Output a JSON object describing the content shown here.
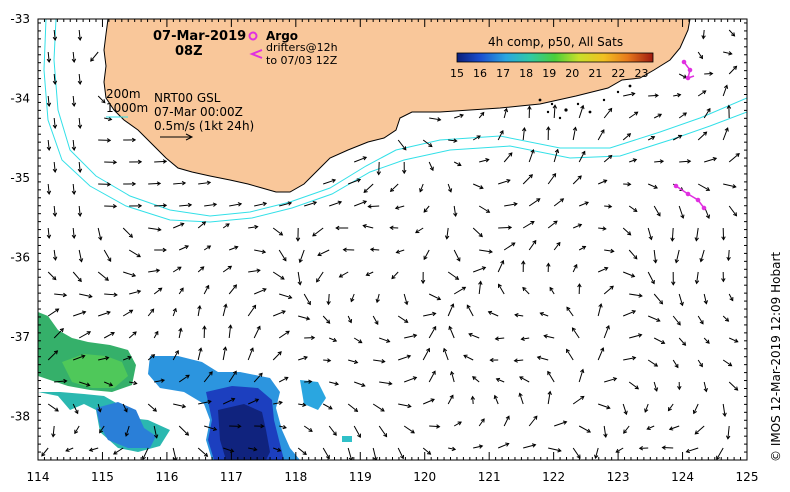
{
  "map": {
    "date_label": "07-Mar-2019",
    "time_label": "08Z",
    "product": "NRT00 GSL",
    "analysis_date": "07-Mar 00:00Z",
    "vector_scale": "0.5m/s (1kt 24h)",
    "isobath_shallow": "200m",
    "isobath_deep": "1000m",
    "argo_label": "Argo",
    "drifters_line1": "drifters@12h",
    "drifters_line2": "to 07/03 12Z",
    "credit": "© IMOS 12-Mar-2019 12:09 Hobart",
    "colors": {
      "land": "#f9c79a",
      "isobath": "#33e0e8",
      "argo": "#e030e0",
      "frame": "#000000"
    }
  },
  "colorbar": {
    "title": "4h comp, p50, All Sats",
    "ticks": [
      "15",
      "16",
      "17",
      "18",
      "19",
      "20",
      "21",
      "22",
      "23"
    ],
    "range": [
      15,
      23.5
    ]
  },
  "axes": {
    "x_ticks": [
      "114",
      "115",
      "116",
      "117",
      "118",
      "119",
      "120",
      "121",
      "122",
      "123",
      "124",
      "125"
    ],
    "y_ticks": [
      "-33",
      "-34",
      "-35",
      "-36",
      "-37",
      "-38"
    ],
    "lon_range": [
      114,
      125
    ],
    "lat_range": [
      -38.55,
      -33
    ]
  }
}
